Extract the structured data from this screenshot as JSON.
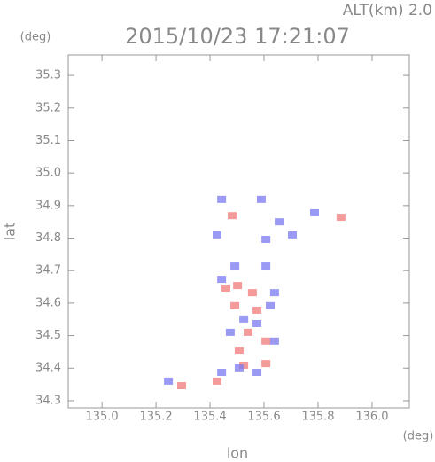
{
  "chart_data": {
    "type": "scatter",
    "title": "2015/10/23 17:21:07",
    "subtitle": "ALT(km) 2.0",
    "x_label": "lon",
    "y_label": "lat",
    "x_unit": "(deg)",
    "y_unit": "(deg)",
    "xlim": [
      134.875,
      136.138
    ],
    "ylim": [
      34.278,
      35.363
    ],
    "xticks": [
      {
        "value": 135.0,
        "label": "135.0"
      },
      135.2,
      135.4,
      135.6,
      135.8,
      {
        "value": 136.0,
        "label": "136.0"
      }
    ],
    "yticks": [
      34.3,
      34.4,
      34.5,
      34.6,
      34.7,
      34.8,
      34.9,
      {
        "value": 35.0,
        "label": "35.0"
      },
      35.1,
      35.2,
      35.3
    ],
    "series": [
      {
        "color": "#f07878",
        "x": [
          135.525,
          135.607,
          135.426,
          135.295,
          135.502,
          135.557,
          135.492,
          135.574,
          135.508,
          135.607,
          135.541,
          135.885,
          135.482,
          135.459
        ],
        "y": [
          34.409,
          34.414,
          34.36,
          34.346,
          34.654,
          34.632,
          34.592,
          34.578,
          34.455,
          34.483,
          34.51,
          34.864,
          34.869,
          34.646
        ]
      },
      {
        "color": "#7878f0",
        "x": [
          135.639,
          135.443,
          135.574,
          135.492,
          135.607,
          135.639,
          135.443,
          135.525,
          135.574,
          135.656,
          135.607,
          135.705,
          135.787,
          135.443,
          135.59,
          135.426,
          135.508,
          135.623,
          135.475,
          135.246
        ],
        "y": [
          34.483,
          34.387,
          34.387,
          34.714,
          34.714,
          34.632,
          34.673,
          34.551,
          34.537,
          34.85,
          34.796,
          34.81,
          34.878,
          34.919,
          34.919,
          34.81,
          34.401,
          34.592,
          34.51,
          34.36
        ]
      }
    ]
  }
}
